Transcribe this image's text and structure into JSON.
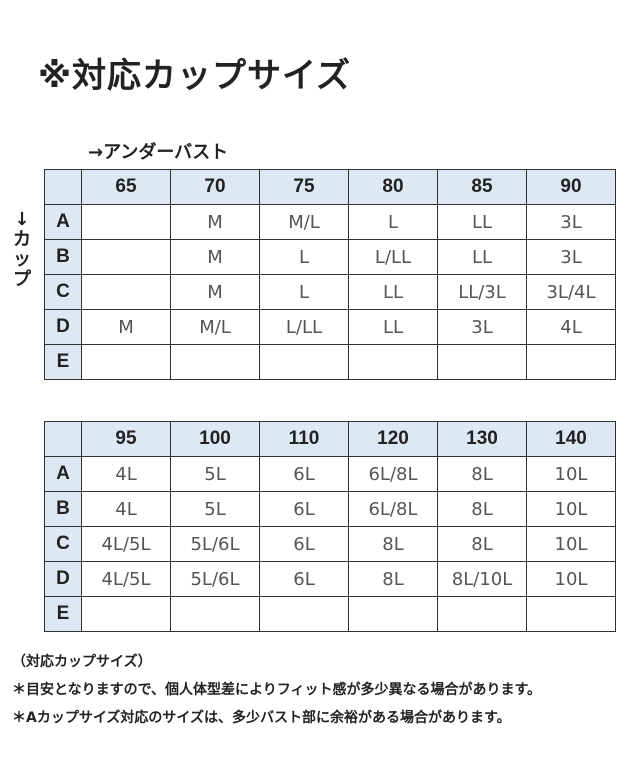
{
  "title": "※対応カップサイズ",
  "under_bust_label": "→アンダーバスト",
  "cup_label": "↓カップ",
  "tables": [
    {
      "columns": [
        "65",
        "70",
        "75",
        "80",
        "85",
        "90"
      ],
      "rows": [
        {
          "cup": "A",
          "values": [
            "",
            "M",
            "M/L",
            "L",
            "LL",
            "3L"
          ]
        },
        {
          "cup": "B",
          "values": [
            "",
            "M",
            "L",
            "L/LL",
            "LL",
            "3L"
          ]
        },
        {
          "cup": "C",
          "values": [
            "",
            "M",
            "L",
            "LL",
            "LL/3L",
            "3L/4L"
          ]
        },
        {
          "cup": "D",
          "values": [
            "M",
            "M/L",
            "L/LL",
            "LL",
            "3L",
            "4L"
          ]
        },
        {
          "cup": "E",
          "values": [
            "",
            "",
            "",
            "",
            "",
            ""
          ]
        }
      ]
    },
    {
      "columns": [
        "95",
        "100",
        "110",
        "120",
        "130",
        "140"
      ],
      "rows": [
        {
          "cup": "A",
          "values": [
            "4L",
            "5L",
            "6L",
            "6L/8L",
            "8L",
            "10L"
          ]
        },
        {
          "cup": "B",
          "values": [
            "4L",
            "5L",
            "6L",
            "6L/8L",
            "8L",
            "10L"
          ]
        },
        {
          "cup": "C",
          "values": [
            "4L/5L",
            "5L/6L",
            "6L",
            "8L",
            "8L",
            "10L"
          ]
        },
        {
          "cup": "D",
          "values": [
            "4L/5L",
            "5L/6L",
            "6L",
            "8L",
            "8L/10L",
            "10L"
          ]
        },
        {
          "cup": "E",
          "values": [
            "",
            "",
            "",
            "",
            "",
            ""
          ]
        }
      ]
    }
  ],
  "notes": [
    "（対応カップサイズ）",
    "＊目安となりますので、個人体型差によりフィット感が多少異なる場合があります。",
    "＊Aカップサイズ対応のサイズは、多少バスト部に余裕がある場合があります。"
  ]
}
